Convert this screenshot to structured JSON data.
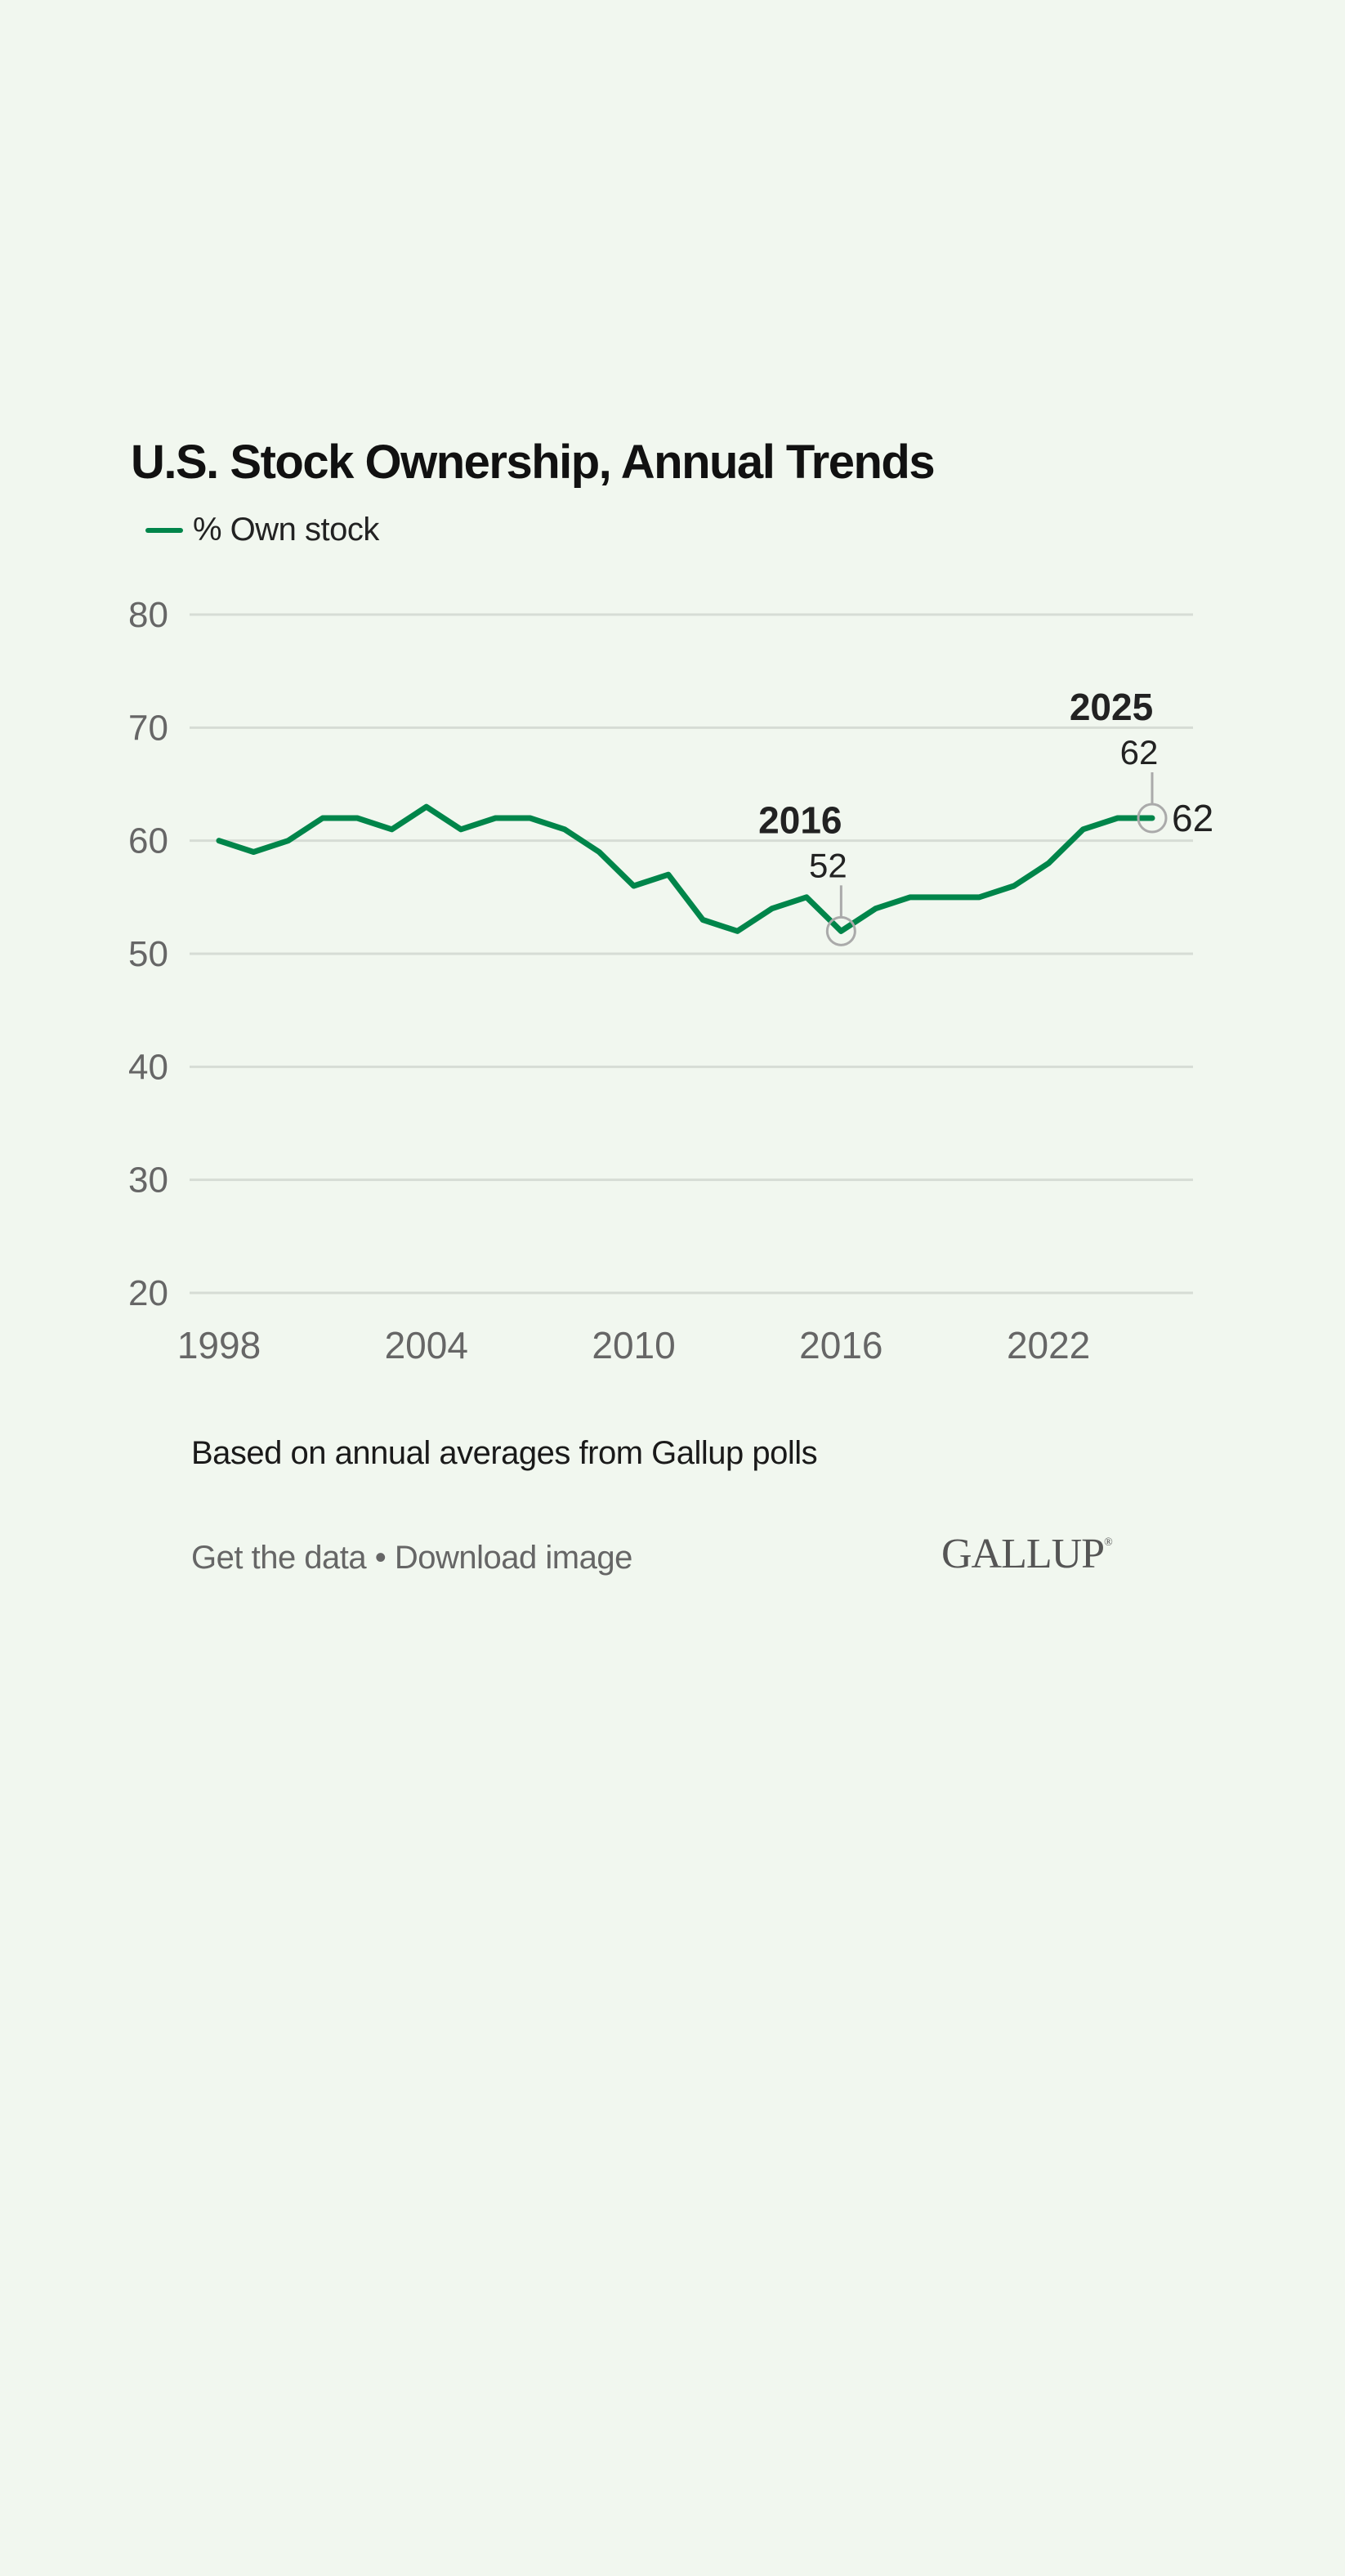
{
  "colors": {
    "background": "#f1f7ef",
    "series": "#00854a",
    "grid": "#d6dcd5"
  },
  "chart_data": {
    "type": "line",
    "title": "U.S. Stock Ownership, Annual Trends",
    "legend_position": "top-left",
    "grid": true,
    "x": [
      1998,
      1999,
      2000,
      2001,
      2002,
      2003,
      2004,
      2005,
      2006,
      2007,
      2008,
      2009,
      2010,
      2011,
      2012,
      2013,
      2014,
      2015,
      2016,
      2017,
      2018,
      2019,
      2020,
      2021,
      2022,
      2023,
      2024,
      2025
    ],
    "series": [
      {
        "name": "% Own stock",
        "values": [
          60,
          59,
          60,
          62,
          62,
          61,
          63,
          61,
          62,
          62,
          61,
          59,
          56,
          57,
          53,
          52,
          54,
          55,
          52,
          54,
          55,
          55,
          55,
          56,
          58,
          61,
          62,
          62
        ]
      }
    ],
    "ylim": [
      20,
      80
    ],
    "yticks": [
      "80",
      "70",
      "60",
      "50",
      "40",
      "30",
      "20"
    ],
    "xticks": [
      "1998",
      "2004",
      "2010",
      "2016",
      "2022"
    ],
    "annotations": [
      {
        "year_label": "2016",
        "value_label": "52"
      },
      {
        "year_label": "2025",
        "value_label": "62"
      }
    ],
    "end_label": "62"
  },
  "footer": {
    "note": "Based on annual averages from Gallup polls",
    "get_data": "Get the data",
    "separator": " • ",
    "download": "Download image",
    "logo": "GALLUP"
  }
}
